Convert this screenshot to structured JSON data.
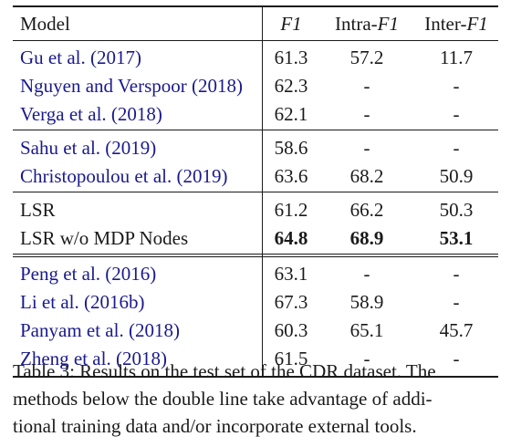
{
  "table": {
    "header": {
      "model": "Model",
      "f1": "F1",
      "intra_prefix": "Intra-",
      "intra_f1": "F1",
      "inter_prefix": "Inter-",
      "inter_f1": "F1"
    },
    "groups": [
      {
        "rows": [
          {
            "model": "Gu et al. (2017)",
            "f1": "61.3",
            "intra": "57.2",
            "inter": "11.7",
            "cite": true
          },
          {
            "model": "Nguyen and Verspoor (2018)",
            "f1": "62.3",
            "intra": "-",
            "inter": "-",
            "cite": true
          },
          {
            "model": "Verga et al. (2018)",
            "f1": "62.1",
            "intra": "-",
            "inter": "-",
            "cite": true
          }
        ]
      },
      {
        "rows": [
          {
            "model": "Sahu et al. (2019)",
            "f1": "58.6",
            "intra": "-",
            "inter": "-",
            "cite": true
          },
          {
            "model": "Christopoulou et al. (2019)",
            "f1": "63.6",
            "intra": "68.2",
            "inter": "50.9",
            "cite": true
          }
        ]
      },
      {
        "rows": [
          {
            "model": "LSR",
            "f1": "61.2",
            "intra": "66.2",
            "inter": "50.3",
            "cite": false
          },
          {
            "model": "LSR w/o MDP Nodes",
            "f1": "64.8",
            "intra": "68.9",
            "inter": "53.1",
            "cite": false,
            "bold": true
          }
        ]
      },
      {
        "rows": [
          {
            "model": "Peng et al. (2016)",
            "f1": "63.1",
            "intra": "-",
            "inter": "-",
            "cite": true
          },
          {
            "model": "Li et al. (2016b)",
            "f1": "67.3",
            "intra": "58.9",
            "inter": "-",
            "cite": true
          },
          {
            "model": "Panyam et al. (2018)",
            "f1": "60.3",
            "intra": "65.1",
            "inter": "45.7",
            "cite": true
          },
          {
            "model": "Zheng et al. (2018)",
            "f1": "61.5",
            "intra": "-",
            "inter": "-",
            "cite": true
          }
        ]
      }
    ]
  },
  "caption": {
    "lines": [
      "Table 3:  Results on the test set of the CDR dataset. The",
      "methods below the double line take advantage of addi-",
      "tional training data and/or incorporate external tools."
    ]
  }
}
